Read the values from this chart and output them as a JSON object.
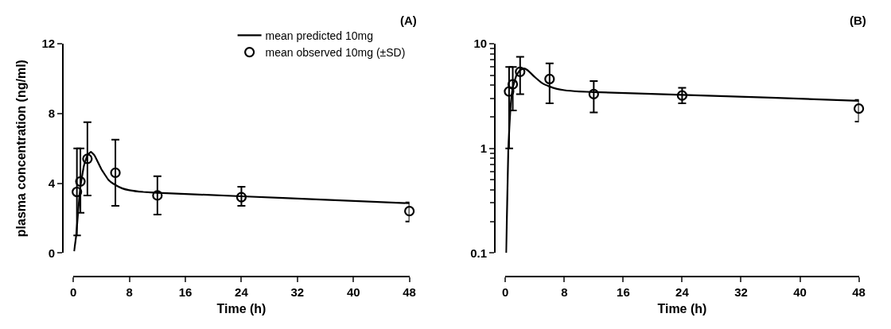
{
  "chart_data": [
    {
      "type": "line",
      "annotations": [
        "(A)"
      ],
      "xlabel": "Time (h)",
      "ylabel": "plasma concentration (ng/ml)",
      "xlim": [
        0,
        48
      ],
      "xticks": [
        0,
        8,
        16,
        24,
        32,
        40,
        48
      ],
      "ylim": [
        0,
        12
      ],
      "yticks": [
        0,
        4,
        8,
        12
      ],
      "legend": "top right",
      "series": [
        {
          "name": "mean predicted 10mg",
          "color": "#000000",
          "marker": "none",
          "line_style": "solid",
          "x": [
            0.1,
            0.4,
            0.7,
            1,
            1.5,
            2,
            2.5,
            3,
            4,
            5,
            6,
            7,
            8,
            10,
            12,
            24,
            36,
            48
          ],
          "values": [
            0.1,
            1.0,
            2.5,
            3.8,
            5.0,
            5.6,
            5.8,
            5.6,
            4.8,
            4.2,
            3.9,
            3.7,
            3.6,
            3.5,
            3.45,
            3.25,
            3.05,
            2.85
          ]
        },
        {
          "name": "mean observed 10mg (±SD)",
          "type": "scatter",
          "color": "#000000",
          "marker": "circle",
          "x": [
            0.5,
            1,
            2,
            6,
            12,
            24,
            48
          ],
          "values": [
            3.5,
            4.1,
            5.4,
            4.6,
            3.3,
            3.2,
            2.4
          ],
          "errors": [
            [
              1.0,
              6.0
            ],
            [
              2.3,
              6.0
            ],
            [
              3.3,
              7.5
            ],
            [
              2.7,
              6.5
            ],
            [
              2.2,
              4.4
            ],
            [
              2.7,
              3.8
            ],
            [
              1.8,
              2.9
            ]
          ]
        }
      ]
    },
    {
      "type": "line",
      "annotations": [
        "(B)"
      ],
      "xlabel": "Time (h)",
      "xlim": [
        0,
        48
      ],
      "xticks": [
        0,
        8,
        16,
        24,
        32,
        40,
        48
      ],
      "ylim": [
        0.1,
        10
      ],
      "yticks": [
        0.1,
        1,
        10
      ],
      "log": "y",
      "series": [
        {
          "color": "#000000",
          "marker": "none",
          "line_style": "solid",
          "x": [
            0.1,
            0.4,
            0.7,
            1,
            1.5,
            2,
            2.5,
            3,
            4,
            5,
            6,
            7,
            8,
            10,
            12,
            24,
            36,
            48
          ],
          "values": [
            0.1,
            1.0,
            2.5,
            3.8,
            5.0,
            5.6,
            5.8,
            5.6,
            4.8,
            4.2,
            3.9,
            3.7,
            3.6,
            3.5,
            3.45,
            3.25,
            3.05,
            2.85
          ]
        },
        {
          "type": "scatter",
          "color": "#000000",
          "marker": "circle",
          "x": [
            0.5,
            1,
            2,
            6,
            12,
            24,
            48
          ],
          "values": [
            3.5,
            4.1,
            5.4,
            4.6,
            3.3,
            3.2,
            2.4
          ],
          "errors": [
            [
              1.0,
              6.0
            ],
            [
              2.3,
              6.0
            ],
            [
              3.3,
              7.5
            ],
            [
              2.7,
              6.5
            ],
            [
              2.2,
              4.4
            ],
            [
              2.7,
              3.8
            ],
            [
              1.8,
              2.9
            ]
          ]
        }
      ]
    }
  ]
}
